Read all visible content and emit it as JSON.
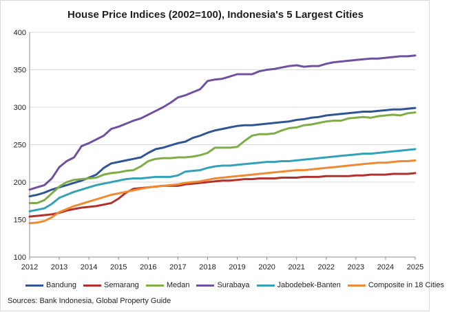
{
  "chart_data": {
    "type": "line",
    "title": "House Price Indices (2002=100), Indonesia's 5 Largest Cities",
    "xlabel": "",
    "ylabel": "",
    "xlim": [
      2012,
      2025
    ],
    "ylim": [
      100,
      400
    ],
    "x_ticks": [
      "2012",
      "2013",
      "2014",
      "2015",
      "2016",
      "2017",
      "2018",
      "2019",
      "2020",
      "2021",
      "2022",
      "2023",
      "2024",
      "2025"
    ],
    "y_ticks": [
      "100",
      "150",
      "200",
      "250",
      "300",
      "350",
      "400"
    ],
    "grid": "horizontal",
    "legend_position": "bottom",
    "x": [
      2012.0,
      2012.25,
      2012.5,
      2012.75,
      2013.0,
      2013.25,
      2013.5,
      2013.75,
      2014.0,
      2014.25,
      2014.5,
      2014.75,
      2015.0,
      2015.25,
      2015.5,
      2015.75,
      2016.0,
      2016.25,
      2016.5,
      2016.75,
      2017.0,
      2017.25,
      2017.5,
      2017.75,
      2018.0,
      2018.25,
      2018.5,
      2018.75,
      2019.0,
      2019.25,
      2019.5,
      2019.75,
      2020.0,
      2020.25,
      2020.5,
      2020.75,
      2021.0,
      2021.25,
      2021.5,
      2021.75,
      2022.0,
      2022.25,
      2022.5,
      2022.75,
      2023.0,
      2023.25,
      2023.5,
      2023.75,
      2024.0,
      2024.25,
      2024.5,
      2024.75,
      2025.0
    ],
    "series": [
      {
        "name": "Bandung",
        "color": "#2f5597",
        "values": [
          181,
          183,
          186,
          190,
          193,
          196,
          199,
          202,
          206,
          210,
          219,
          225,
          227,
          229,
          231,
          233,
          239,
          244,
          246,
          249,
          252,
          254,
          259,
          262,
          266,
          269,
          271,
          273,
          275,
          276,
          276,
          277,
          278,
          279,
          280,
          281,
          283,
          284,
          286,
          287,
          289,
          290,
          291,
          292,
          293,
          294,
          294,
          295,
          296,
          297,
          297,
          298,
          299
        ]
      },
      {
        "name": "Semarang",
        "color": "#b2312c",
        "values": [
          154,
          155,
          156,
          157,
          159,
          162,
          164,
          166,
          167,
          168,
          170,
          172,
          178,
          186,
          191,
          192,
          193,
          194,
          195,
          195,
          195,
          197,
          198,
          199,
          200,
          201,
          202,
          202,
          203,
          204,
          204,
          205,
          205,
          205,
          206,
          206,
          206,
          207,
          207,
          207,
          208,
          208,
          208,
          208,
          209,
          209,
          210,
          210,
          210,
          211,
          211,
          211,
          212
        ]
      },
      {
        "name": "Medan",
        "color": "#7fad45",
        "values": [
          172,
          172,
          176,
          185,
          194,
          200,
          203,
          204,
          205,
          206,
          210,
          212,
          213,
          215,
          216,
          221,
          228,
          231,
          232,
          232,
          233,
          233,
          234,
          236,
          239,
          246,
          246,
          246,
          247,
          255,
          262,
          264,
          264,
          265,
          269,
          272,
          273,
          276,
          277,
          279,
          281,
          282,
          282,
          285,
          286,
          287,
          286,
          288,
          289,
          290,
          289,
          292,
          293
        ]
      },
      {
        "name": "Surabaya",
        "color": "#7051a0",
        "values": [
          190,
          193,
          196,
          205,
          220,
          228,
          233,
          248,
          252,
          257,
          262,
          271,
          274,
          278,
          282,
          285,
          290,
          295,
          300,
          306,
          313,
          316,
          320,
          324,
          335,
          337,
          338,
          341,
          344,
          344,
          344,
          348,
          350,
          351,
          353,
          355,
          356,
          354,
          355,
          355,
          358,
          360,
          361,
          362,
          363,
          364,
          365,
          365,
          366,
          367,
          368,
          368,
          369
        ]
      },
      {
        "name": "Jabodebek-Banten",
        "color": "#33a1b8",
        "values": [
          161,
          163,
          165,
          171,
          179,
          183,
          187,
          190,
          193,
          196,
          198,
          200,
          202,
          204,
          205,
          205,
          206,
          207,
          207,
          207,
          209,
          214,
          215,
          216,
          219,
          221,
          222,
          222,
          223,
          224,
          225,
          226,
          227,
          227,
          228,
          228,
          229,
          230,
          231,
          232,
          233,
          234,
          235,
          236,
          237,
          238,
          238,
          239,
          240,
          241,
          242,
          243,
          244
        ]
      },
      {
        "name": "Composite in 18 Cities",
        "color": "#ef8a32",
        "values": [
          145,
          146,
          148,
          153,
          160,
          164,
          168,
          171,
          174,
          177,
          180,
          183,
          185,
          187,
          189,
          191,
          193,
          194,
          195,
          196,
          197,
          199,
          200,
          201,
          203,
          205,
          206,
          207,
          208,
          209,
          210,
          211,
          212,
          213,
          214,
          215,
          216,
          216,
          217,
          218,
          219,
          220,
          221,
          222,
          223,
          224,
          225,
          226,
          226,
          227,
          228,
          228,
          229
        ]
      }
    ]
  },
  "source_text": "Sources: Bank Indonesia, Global Property Guide"
}
